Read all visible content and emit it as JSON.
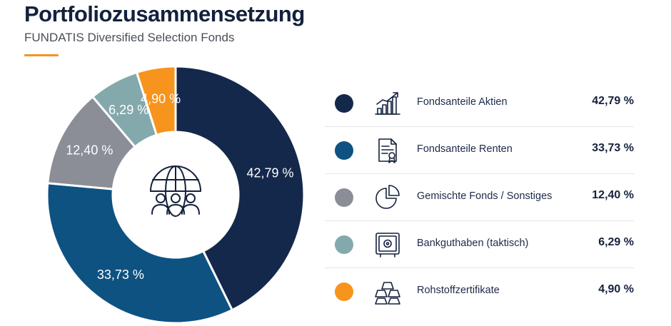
{
  "header": {
    "title": "Portfoliozusammensetzung",
    "subtitle": "FUNDATIS Diversified Selection Fonds"
  },
  "colors": {
    "accent": "#f7941d",
    "background": "#ffffff",
    "separator": "#e3e5e8"
  },
  "center_icon": "globe-people-icon",
  "chart_data": {
    "type": "pie",
    "variant": "donut",
    "title": "Portfoliozusammensetzung",
    "slices": [
      {
        "label": "Fondsanteile Aktien",
        "value": 42.79,
        "display": "42,79 %",
        "color": "#14284b",
        "icon": "growth-chart-icon"
      },
      {
        "label": "Fondsanteile Renten",
        "value": 33.73,
        "display": "33,73 %",
        "color": "#0e5282",
        "icon": "certificate-icon"
      },
      {
        "label": "Gemischte Fonds / Sonstiges",
        "value": 12.4,
        "display": "12,40 %",
        "color": "#8b8e96",
        "icon": "pie-chart-icon"
      },
      {
        "label": "Bankguthaben (taktisch)",
        "value": 6.29,
        "display": "6,29 %",
        "color": "#84a9ac",
        "icon": "safe-icon"
      },
      {
        "label": "Rohstoffzertifikate",
        "value": 4.9,
        "display": "4,90 %",
        "color": "#f7941d",
        "icon": "gold-bars-icon"
      }
    ],
    "legend": "right",
    "start_angle_deg": 0,
    "direction": "clockwise"
  }
}
